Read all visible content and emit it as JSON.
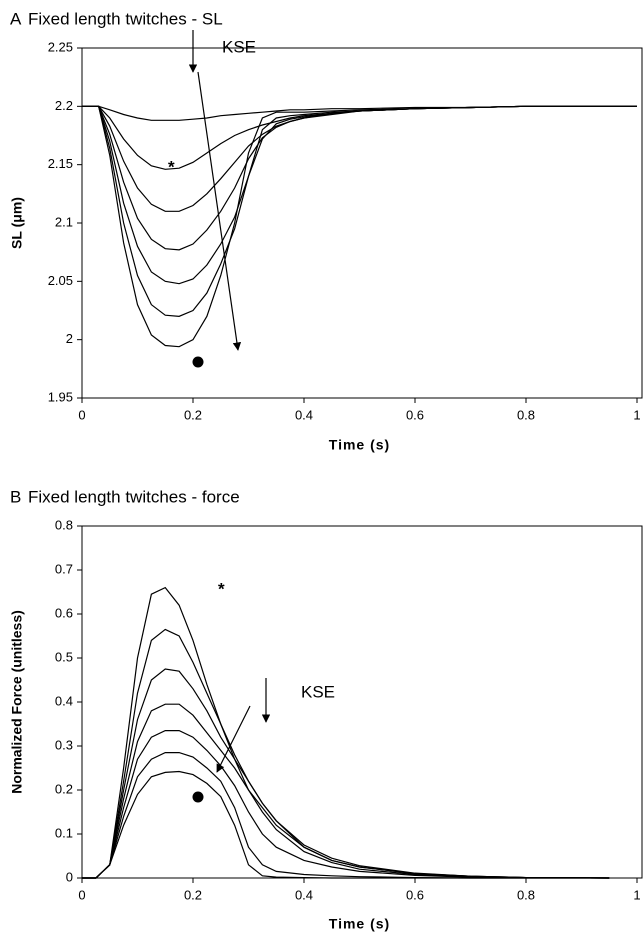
{
  "chart_data": [
    {
      "type": "line",
      "panel": "A",
      "title": "Fixed length twitches - SL",
      "xlabel": "Time (s)",
      "ylabel": "SL (μm)",
      "xlim": [
        0,
        1
      ],
      "xticks": [
        0,
        0.2,
        0.4,
        0.6,
        0.8,
        1
      ],
      "ylim": [
        1.95,
        2.25
      ],
      "yticks": [
        1.95,
        2,
        2.05,
        2.1,
        2.15,
        2.2,
        2.25
      ],
      "annotations": [
        "*",
        "KSE"
      ],
      "x": [
        0,
        0.03,
        0.05,
        0.075,
        0.1,
        0.125,
        0.15,
        0.175,
        0.2,
        0.225,
        0.25,
        0.275,
        0.3,
        0.325,
        0.35,
        0.375,
        0.4,
        0.45,
        0.5,
        0.6,
        0.7,
        0.8,
        1.0
      ],
      "series": [
        {
          "color": "#000000",
          "values": [
            2.2,
            2.2,
            2.197,
            2.193,
            2.19,
            2.188,
            2.188,
            2.188,
            2.189,
            2.19,
            2.192,
            2.193,
            2.194,
            2.195,
            2.196,
            2.197,
            2.197,
            2.198,
            2.198,
            2.199,
            2.199,
            2.2,
            2.2
          ]
        },
        {
          "color": "#000000",
          "values": [
            2.2,
            2.2,
            2.19,
            2.172,
            2.158,
            2.149,
            2.146,
            2.147,
            2.152,
            2.16,
            2.168,
            2.175,
            2.18,
            2.184,
            2.187,
            2.19,
            2.192,
            2.194,
            2.196,
            2.198,
            2.199,
            2.2,
            2.2
          ]
        },
        {
          "color": "#000000",
          "values": [
            2.2,
            2.2,
            2.183,
            2.153,
            2.13,
            2.116,
            2.11,
            2.11,
            2.115,
            2.125,
            2.138,
            2.152,
            2.166,
            2.176,
            2.183,
            2.187,
            2.19,
            2.193,
            2.196,
            2.198,
            2.199,
            2.2,
            2.2
          ]
        },
        {
          "color": "#000000",
          "values": [
            2.2,
            2.2,
            2.176,
            2.135,
            2.104,
            2.086,
            2.078,
            2.077,
            2.082,
            2.094,
            2.11,
            2.13,
            2.155,
            2.173,
            2.182,
            2.187,
            2.19,
            2.194,
            2.196,
            2.198,
            2.199,
            2.2,
            2.2
          ]
        },
        {
          "color": "#000000",
          "values": [
            2.2,
            2.2,
            2.17,
            2.117,
            2.08,
            2.058,
            2.05,
            2.048,
            2.052,
            2.064,
            2.082,
            2.105,
            2.14,
            2.172,
            2.185,
            2.189,
            2.191,
            2.194,
            2.196,
            2.198,
            2.199,
            2.2,
            2.2
          ]
        },
        {
          "color": "#000000",
          "values": [
            2.2,
            2.2,
            2.164,
            2.1,
            2.055,
            2.03,
            2.021,
            2.02,
            2.025,
            2.04,
            2.065,
            2.095,
            2.14,
            2.18,
            2.19,
            2.192,
            2.193,
            2.195,
            2.196,
            2.198,
            2.199,
            2.2,
            2.2
          ]
        },
        {
          "color": "#000000",
          "values": [
            2.2,
            2.2,
            2.158,
            2.083,
            2.03,
            2.004,
            1.995,
            1.994,
            2.0,
            2.02,
            2.055,
            2.1,
            2.16,
            2.19,
            2.195,
            2.195,
            2.195,
            2.196,
            2.197,
            2.198,
            2.199,
            2.2,
            2.2
          ]
        }
      ]
    },
    {
      "type": "line",
      "panel": "B",
      "title": "Fixed length twitches - force",
      "xlabel": "Time (s)",
      "ylabel": "Normalized Force (unitless)",
      "xlim": [
        0,
        1
      ],
      "xticks": [
        0,
        0.2,
        0.4,
        0.6,
        0.8,
        1
      ],
      "ylim": [
        0,
        0.8
      ],
      "yticks": [
        0,
        0.1,
        0.2,
        0.3,
        0.4,
        0.5,
        0.6,
        0.7,
        0.8
      ],
      "annotations": [
        "*",
        "KSE"
      ],
      "x": [
        0,
        0.025,
        0.05,
        0.075,
        0.1,
        0.125,
        0.15,
        0.175,
        0.2,
        0.225,
        0.25,
        0.275,
        0.3,
        0.325,
        0.35,
        0.4,
        0.45,
        0.5,
        0.6,
        0.7,
        0.8,
        0.95
      ],
      "series": [
        {
          "color": "#000000",
          "values": [
            0,
            0,
            0.03,
            0.25,
            0.5,
            0.645,
            0.66,
            0.62,
            0.54,
            0.44,
            0.35,
            0.27,
            0.2,
            0.15,
            0.11,
            0.06,
            0.035,
            0.02,
            0.008,
            0.003,
            0.001,
            0
          ]
        },
        {
          "color": "#000000",
          "values": [
            0,
            0,
            0.03,
            0.22,
            0.42,
            0.54,
            0.565,
            0.55,
            0.49,
            0.42,
            0.35,
            0.28,
            0.22,
            0.17,
            0.13,
            0.07,
            0.04,
            0.025,
            0.01,
            0.004,
            0.001,
            0
          ]
        },
        {
          "color": "#000000",
          "values": [
            0,
            0,
            0.03,
            0.2,
            0.36,
            0.45,
            0.475,
            0.47,
            0.43,
            0.38,
            0.32,
            0.27,
            0.22,
            0.17,
            0.13,
            0.075,
            0.045,
            0.028,
            0.011,
            0.004,
            0.001,
            0
          ]
        },
        {
          "color": "#000000",
          "values": [
            0,
            0,
            0.03,
            0.18,
            0.31,
            0.38,
            0.395,
            0.395,
            0.37,
            0.33,
            0.29,
            0.25,
            0.2,
            0.16,
            0.12,
            0.07,
            0.04,
            0.025,
            0.01,
            0.004,
            0.001,
            0
          ]
        },
        {
          "color": "#000000",
          "values": [
            0,
            0,
            0.03,
            0.16,
            0.27,
            0.32,
            0.335,
            0.335,
            0.32,
            0.29,
            0.255,
            0.21,
            0.15,
            0.1,
            0.07,
            0.04,
            0.025,
            0.015,
            0.006,
            0.002,
            0.001,
            0
          ]
        },
        {
          "color": "#000000",
          "values": [
            0,
            0,
            0.03,
            0.14,
            0.23,
            0.27,
            0.285,
            0.285,
            0.275,
            0.25,
            0.22,
            0.16,
            0.07,
            0.03,
            0.015,
            0.008,
            0.005,
            0.003,
            0.001,
            0,
            0,
            0
          ]
        },
        {
          "color": "#000000",
          "values": [
            0,
            0,
            0.03,
            0.12,
            0.19,
            0.23,
            0.24,
            0.242,
            0.235,
            0.215,
            0.185,
            0.12,
            0.03,
            0.005,
            0.002,
            0.001,
            0,
            0,
            0,
            0,
            0,
            0
          ]
        }
      ]
    }
  ]
}
